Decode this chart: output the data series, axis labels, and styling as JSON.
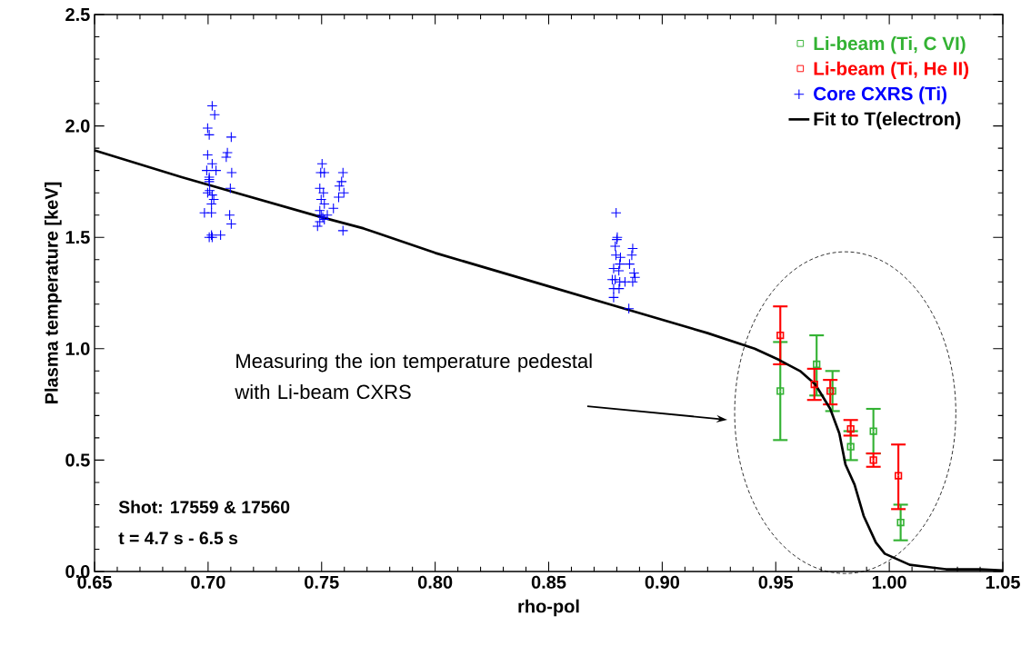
{
  "chart_data": {
    "type": "scatter",
    "xlabel": "rho-pol",
    "ylabel": "Plasma temperature [keV]",
    "xlim": [
      0.65,
      1.05
    ],
    "ylim": [
      0.0,
      2.5
    ],
    "xticks": [
      {
        "value": 0.65,
        "label": "0.65"
      },
      {
        "value": 0.7,
        "label": "0.70"
      },
      {
        "value": 0.75,
        "label": "0.75"
      },
      {
        "value": 0.8,
        "label": "0.80"
      },
      {
        "value": 0.85,
        "label": "0.85"
      },
      {
        "value": 0.9,
        "label": "0.90"
      },
      {
        "value": 0.95,
        "label": "0.95"
      },
      {
        "value": 1.0,
        "label": "1.00"
      },
      {
        "value": 1.05,
        "label": "1.05"
      }
    ],
    "yticks": [
      {
        "value": 0.0,
        "label": "0.0"
      },
      {
        "value": 0.5,
        "label": "0.5"
      },
      {
        "value": 1.0,
        "label": "1.0"
      },
      {
        "value": 1.5,
        "label": "1.5"
      },
      {
        "value": 2.0,
        "label": "2.0"
      },
      {
        "value": 2.5,
        "label": "2.5"
      }
    ],
    "grid": false,
    "legend": "top right",
    "annotations": [
      "Measuring the ion temperature pedestal with Li-beam CXRS",
      "Shot:  17559 & 17560",
      "t =  4.7 s - 6.5 s"
    ],
    "series": [
      {
        "name": "Li-beam (Ti, C VI)",
        "type": "scatter",
        "marker": "square",
        "color": "#33b233",
        "x": [
          0.952,
          0.968,
          0.975,
          0.983,
          0.993,
          1.005
        ],
        "values": [
          0.81,
          0.93,
          0.81,
          0.56,
          0.63,
          0.22
        ],
        "errors": [
          [
            0.59,
            1.03
          ],
          [
            0.79,
            1.06
          ],
          [
            0.72,
            0.9
          ],
          [
            0.5,
            0.63
          ],
          [
            0.53,
            0.73
          ],
          [
            0.14,
            0.3
          ]
        ]
      },
      {
        "name": "Li-beam (Ti, He II)",
        "type": "scatter",
        "marker": "square",
        "color": "#ff0000",
        "x": [
          0.952,
          0.967,
          0.974,
          0.983,
          0.993,
          1.004
        ],
        "values": [
          1.06,
          0.84,
          0.81,
          0.64,
          0.5,
          0.43
        ],
        "errors": [
          [
            0.93,
            1.19
          ],
          [
            0.77,
            0.91
          ],
          [
            0.75,
            0.86
          ],
          [
            0.61,
            0.68
          ],
          [
            0.47,
            0.53
          ],
          [
            0.28,
            0.57
          ]
        ]
      },
      {
        "name": "Core CXRS (Ti)",
        "type": "scatter",
        "marker": "cross",
        "color": "#0000ff",
        "x": [
          0.7018,
          0.7029,
          0.6998,
          0.7005,
          0.7102,
          0.7085,
          0.708,
          0.6998,
          0.7018,
          0.7035,
          0.6994,
          0.7005,
          0.7104,
          0.7098,
          0.7007,
          0.6998,
          0.7018,
          0.7025,
          0.7015,
          0.6984,
          0.7015,
          0.7095,
          0.7102,
          0.7015,
          0.7055,
          0.7018,
          0.7005,
          0.7005,
          0.7005,
          0.7502,
          0.7496,
          0.7512,
          0.7594,
          0.7588,
          0.7578,
          0.7598,
          0.7492,
          0.7508,
          0.7498,
          0.7512,
          0.7575,
          0.7552,
          0.7492,
          0.7498,
          0.7525,
          0.7505,
          0.7492,
          0.7512,
          0.7482,
          0.7594,
          0.8797,
          0.8802,
          0.88,
          0.8793,
          0.887,
          0.8866,
          0.8796,
          0.8816,
          0.8813,
          0.8856,
          0.8786,
          0.8809,
          0.8876,
          0.888,
          0.878,
          0.8793,
          0.8836,
          0.8813,
          0.887,
          0.8786,
          0.881,
          0.8786,
          0.8853
        ],
        "values": [
          2.09,
          2.05,
          1.99,
          1.96,
          1.95,
          1.88,
          1.86,
          1.87,
          1.83,
          1.8,
          1.8,
          1.76,
          1.79,
          1.72,
          1.71,
          1.7,
          1.69,
          1.67,
          1.65,
          1.61,
          1.61,
          1.6,
          1.56,
          1.51,
          1.51,
          1.5,
          1.5,
          1.75,
          1.77,
          1.83,
          1.79,
          1.79,
          1.79,
          1.75,
          1.73,
          1.7,
          1.72,
          1.7,
          1.67,
          1.65,
          1.68,
          1.63,
          1.62,
          1.6,
          1.6,
          1.59,
          1.57,
          1.58,
          1.55,
          1.53,
          1.61,
          1.5,
          1.49,
          1.46,
          1.45,
          1.42,
          1.42,
          1.41,
          1.38,
          1.38,
          1.36,
          1.35,
          1.34,
          1.32,
          1.31,
          1.31,
          1.3,
          1.3,
          1.3,
          1.27,
          1.27,
          1.23,
          1.18
        ]
      },
      {
        "name": "Fit to T(electron)",
        "type": "line",
        "marker": "none",
        "line_style": "solid",
        "color": "#000000",
        "x": [
          0.65,
          0.6884,
          0.75,
          0.7685,
          0.8,
          0.85,
          0.88,
          0.92,
          0.9407,
          0.9514,
          0.9607,
          0.9674,
          0.974,
          0.978,
          0.9807,
          0.9847,
          0.9887,
          0.9941,
          0.998,
          1.009,
          1.025,
          1.04,
          1.05
        ],
        "values": [
          1.89,
          1.77,
          1.59,
          1.54,
          1.43,
          1.28,
          1.19,
          1.07,
          1.0,
          0.95,
          0.9,
          0.84,
          0.73,
          0.62,
          0.48,
          0.39,
          0.25,
          0.13,
          0.08,
          0.03,
          0.01,
          0.01,
          0.005
        ]
      }
    ]
  }
}
